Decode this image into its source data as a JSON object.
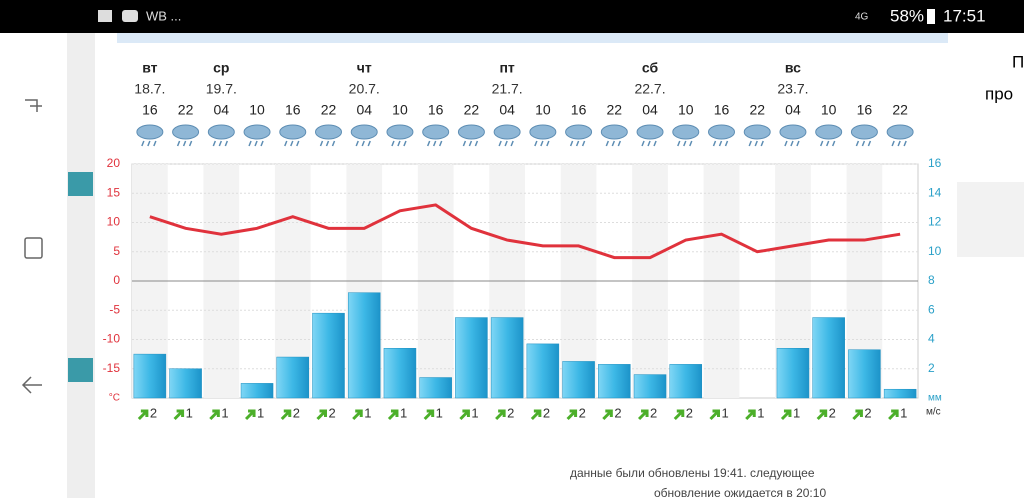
{
  "status_bar": {
    "apps": "WB ...",
    "network": "4G",
    "battery": "58%",
    "time": "17:51"
  },
  "side_text": [
    "П",
    "про"
  ],
  "chart_data": {
    "type": "bar",
    "days": [
      "вт",
      null,
      "ср",
      null,
      null,
      null,
      "чт",
      null,
      null,
      null,
      "пт",
      null,
      null,
      null,
      "сб",
      null,
      null,
      null,
      "вс",
      null,
      null,
      null
    ],
    "dates": [
      "18.7.",
      null,
      "19.7.",
      null,
      null,
      null,
      "20.7.",
      null,
      null,
      null,
      "21.7.",
      null,
      null,
      null,
      "22.7.",
      null,
      null,
      null,
      "23.7.",
      null,
      null,
      null
    ],
    "categories": [
      "16",
      "22",
      "04",
      "10",
      "16",
      "22",
      "04",
      "10",
      "16",
      "22",
      "04",
      "10",
      "16",
      "22",
      "04",
      "10",
      "16",
      "22",
      "04",
      "10",
      "16",
      "22"
    ],
    "ylim": [
      -20,
      20
    ],
    "yticks": [
      -15,
      -10,
      -5,
      0,
      5,
      10,
      15,
      20
    ],
    "y_unit": "°C",
    "y2lim": [
      0,
      16
    ],
    "y2ticks": [
      2,
      4,
      6,
      8,
      10,
      12,
      14,
      16
    ],
    "y2_unit": "мм",
    "grid": true,
    "series": [
      {
        "type": "line",
        "color": "#e0323c",
        "values": [
          11,
          9,
          8,
          9,
          11,
          9,
          9,
          12,
          13,
          9,
          7,
          6,
          6,
          4,
          4,
          7,
          8,
          5,
          6,
          7,
          7,
          8
        ]
      },
      {
        "type": "bar",
        "color": "#3db8e6",
        "axis": "y2",
        "values": [
          3.0,
          2.0,
          0,
          1.0,
          2.8,
          5.8,
          7.2,
          3.4,
          1.4,
          5.5,
          5.5,
          3.7,
          2.5,
          2.3,
          1.6,
          2.3,
          0,
          0,
          3.4,
          5.5,
          3.3,
          0.6
        ]
      }
    ],
    "wind": {
      "values": [
        2,
        1,
        1,
        1,
        2,
        2,
        1,
        1,
        1,
        1,
        2,
        2,
        2,
        2,
        2,
        2,
        1,
        1,
        1,
        2,
        2,
        1
      ],
      "unit": "м/с"
    }
  },
  "footer": [
    "данные были обновлены 19:41. следующее",
    "обновление ожидается в 20:10"
  ]
}
